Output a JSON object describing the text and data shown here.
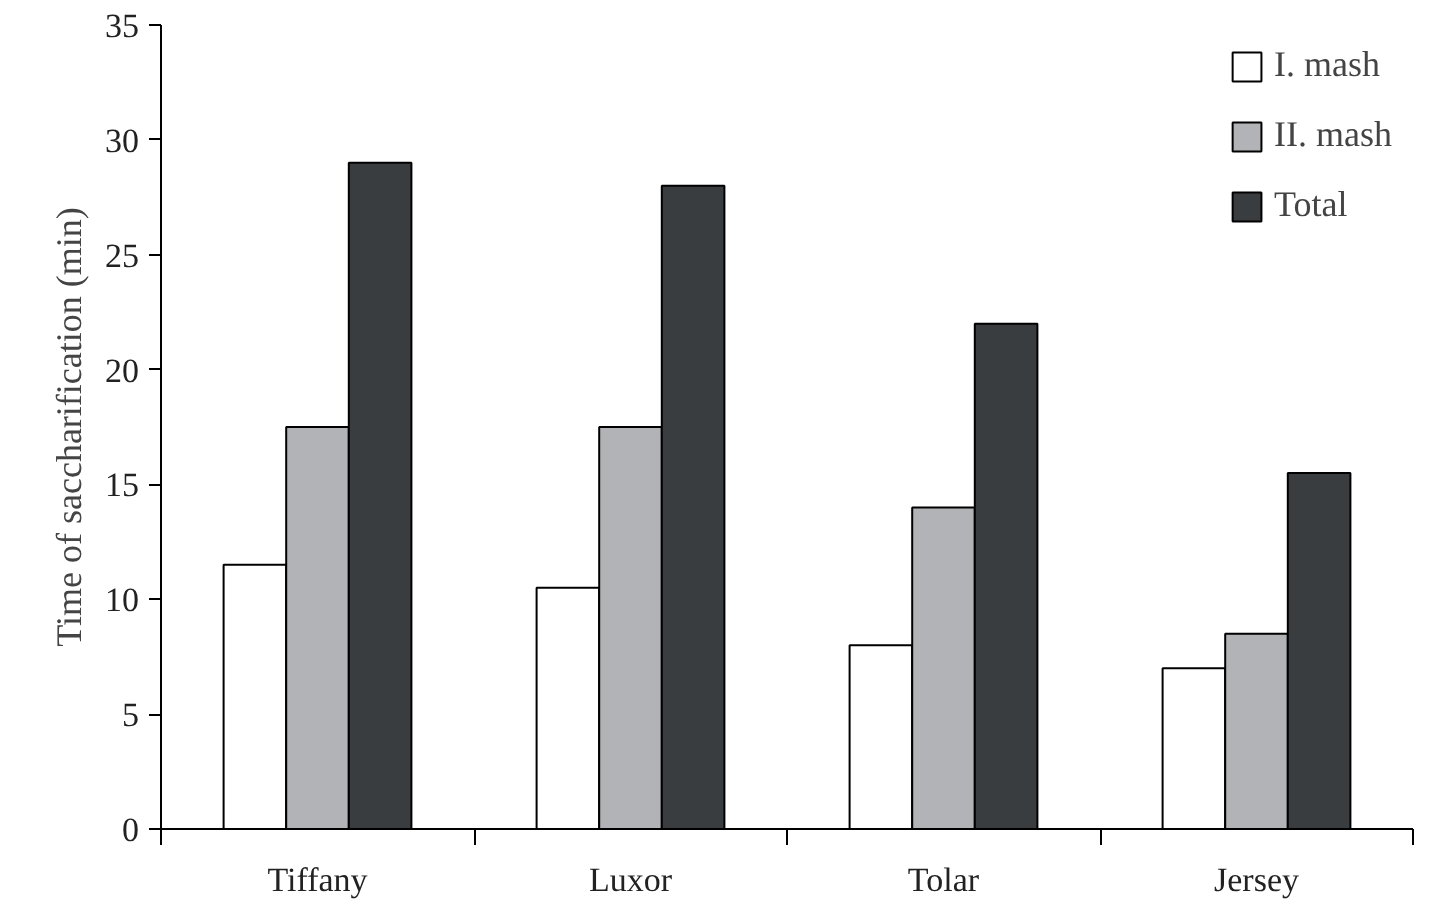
{
  "chart_data": {
    "type": "bar",
    "ylabel": "Time of saccharification (min)",
    "categories": [
      "Tiffany",
      "Luxor",
      "Tolar",
      "Jersey"
    ],
    "series": [
      {
        "name": "I. mash",
        "color": "#ffffff",
        "values": [
          11.5,
          10.5,
          8,
          7
        ]
      },
      {
        "name": "II. mash",
        "color": "#b1b3b6",
        "values": [
          17.5,
          17.5,
          14,
          8.5
        ]
      },
      {
        "name": "Total",
        "color": "#3a3d40",
        "values": [
          29,
          28,
          22,
          15.5
        ]
      }
    ],
    "ylim": [
      0,
      35
    ],
    "yticks": [
      0,
      5,
      10,
      15,
      20,
      25,
      30,
      35
    ],
    "grid": false,
    "legend": "top right"
  }
}
